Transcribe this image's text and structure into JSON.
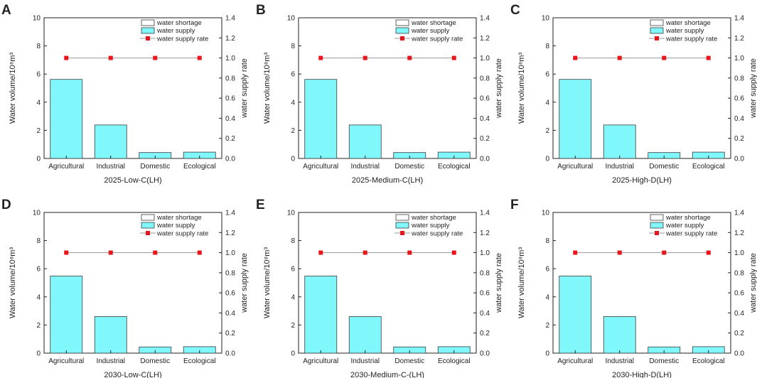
{
  "colors": {
    "supply_fill": "#7ff7fb",
    "bar_stroke": "#3a3a3a",
    "shortage_fill": "#ffffff",
    "rate_marker": "#e8161b",
    "rate_line": "#9a9a9a",
    "axis": "#222222"
  },
  "chart_data": [
    {
      "panel": "A",
      "type": "bar",
      "xlabel": "2025-Low-C(LH)",
      "ylabel": "Water volume/10⁸m³",
      "y2label": "water supply rate",
      "ylim": [
        0,
        10
      ],
      "y2lim": [
        0,
        1.4
      ],
      "yticks": [
        "0",
        "2",
        "4",
        "6",
        "8",
        "10"
      ],
      "y2ticks": [
        "0.0",
        "0.2",
        "0.4",
        "0.6",
        "0.8",
        "1.0",
        "1.2",
        "1.4"
      ],
      "categories": [
        "Agricultural",
        "Industrial",
        "Domestic",
        "Ecological"
      ],
      "legend": [
        "water shortage",
        "water supply",
        "water supply rate"
      ],
      "series": [
        {
          "name": "water supply",
          "values": [
            5.62,
            2.38,
            0.42,
            0.45
          ]
        },
        {
          "name": "water shortage",
          "values": [
            0,
            0,
            0,
            0
          ]
        },
        {
          "name": "water supply rate",
          "values": [
            1.0,
            1.0,
            1.0,
            1.0
          ]
        }
      ]
    },
    {
      "panel": "B",
      "type": "bar",
      "xlabel": "2025-Medium-C(LH)",
      "ylabel": "Water volume/10⁸m³",
      "y2label": "water supply rate",
      "ylim": [
        0,
        10
      ],
      "y2lim": [
        0,
        1.4
      ],
      "yticks": [
        "0",
        "2",
        "4",
        "6",
        "8",
        "10"
      ],
      "y2ticks": [
        "0.0",
        "0.2",
        "0.4",
        "0.6",
        "0.8",
        "1.0",
        "1.2",
        "1.4"
      ],
      "categories": [
        "Agricultural",
        "Industrial",
        "Domestic",
        "Ecological"
      ],
      "legend": [
        "water shortage",
        "water supply",
        "water supply rate"
      ],
      "series": [
        {
          "name": "water supply",
          "values": [
            5.62,
            2.38,
            0.42,
            0.45
          ]
        },
        {
          "name": "water shortage",
          "values": [
            0,
            0,
            0,
            0
          ]
        },
        {
          "name": "water supply rate",
          "values": [
            1.0,
            1.0,
            1.0,
            1.0
          ]
        }
      ]
    },
    {
      "panel": "C",
      "type": "bar",
      "xlabel": "2025-High-D(LH)",
      "ylabel": "Water volume/10⁸m³",
      "y2label": "water supply rate",
      "ylim": [
        0,
        10
      ],
      "y2lim": [
        0,
        1.4
      ],
      "yticks": [
        "0",
        "2",
        "4",
        "6",
        "8",
        "10"
      ],
      "y2ticks": [
        "0.0",
        "0.2",
        "0.4",
        "0.6",
        "0.8",
        "1.0",
        "1.2",
        "1.4"
      ],
      "categories": [
        "Agricultural",
        "Industrial",
        "Domestic",
        "Ecological"
      ],
      "legend": [
        "water shortage",
        "water supply",
        "water supply rate"
      ],
      "series": [
        {
          "name": "water supply",
          "values": [
            5.62,
            2.38,
            0.42,
            0.45
          ]
        },
        {
          "name": "water shortage",
          "values": [
            0,
            0,
            0,
            0
          ]
        },
        {
          "name": "water supply rate",
          "values": [
            1.0,
            1.0,
            1.0,
            1.0
          ]
        }
      ]
    },
    {
      "panel": "D",
      "type": "bar",
      "xlabel": "2030-Low-C(LH)",
      "ylabel": "Water volume/10⁸m³",
      "y2label": "water supply rate",
      "ylim": [
        0,
        10
      ],
      "y2lim": [
        0,
        1.4
      ],
      "yticks": [
        "0",
        "2",
        "4",
        "6",
        "8",
        "10"
      ],
      "y2ticks": [
        "0.0",
        "0.2",
        "0.4",
        "0.6",
        "0.8",
        "1.0",
        "1.2",
        "1.4"
      ],
      "categories": [
        "Agricultural",
        "Industrial",
        "Domestic",
        "Ecological"
      ],
      "legend": [
        "water shortage",
        "water supply",
        "water supply rate"
      ],
      "series": [
        {
          "name": "water supply",
          "values": [
            5.48,
            2.6,
            0.44,
            0.46
          ]
        },
        {
          "name": "water shortage",
          "values": [
            0,
            0,
            0,
            0
          ]
        },
        {
          "name": "water supply rate",
          "values": [
            1.0,
            1.0,
            1.0,
            1.0
          ]
        }
      ]
    },
    {
      "panel": "E",
      "type": "bar",
      "xlabel": "2030-Medium-C-(LH)",
      "ylabel": "Water volume/10⁸m³",
      "y2label": "water supply rate",
      "ylim": [
        0,
        10
      ],
      "y2lim": [
        0,
        1.4
      ],
      "yticks": [
        "0",
        "2",
        "4",
        "6",
        "8",
        "10"
      ],
      "y2ticks": [
        "0.0",
        "0.2",
        "0.4",
        "0.6",
        "0.8",
        "1.0",
        "1.2",
        "1.4"
      ],
      "categories": [
        "Agricultural",
        "Industrial",
        "Domestic",
        "Ecological"
      ],
      "legend": [
        "water shortage",
        "water supply",
        "water supply rate"
      ],
      "series": [
        {
          "name": "water supply",
          "values": [
            5.48,
            2.6,
            0.44,
            0.46
          ]
        },
        {
          "name": "water shortage",
          "values": [
            0,
            0,
            0,
            0
          ]
        },
        {
          "name": "water supply rate",
          "values": [
            1.0,
            1.0,
            1.0,
            1.0
          ]
        }
      ]
    },
    {
      "panel": "F",
      "type": "bar",
      "xlabel": "2030-High-D(LH)",
      "ylabel": "Water volume/10⁸m³",
      "y2label": "water supply rate",
      "ylim": [
        0,
        10
      ],
      "y2lim": [
        0,
        1.4
      ],
      "yticks": [
        "0",
        "2",
        "4",
        "6",
        "8",
        "10"
      ],
      "y2ticks": [
        "0.0",
        "0.2",
        "0.4",
        "0.6",
        "0.8",
        "1.0",
        "1.2",
        "1.4"
      ],
      "categories": [
        "Agricultural",
        "Industrial",
        "Domestic",
        "Ecological"
      ],
      "legend": [
        "water shortage",
        "water supply",
        "water supply rate"
      ],
      "series": [
        {
          "name": "water supply",
          "values": [
            5.48,
            2.6,
            0.44,
            0.46
          ]
        },
        {
          "name": "water shortage",
          "values": [
            0,
            0,
            0,
            0
          ]
        },
        {
          "name": "water supply rate",
          "values": [
            1.0,
            1.0,
            1.0,
            1.0
          ]
        }
      ]
    }
  ]
}
